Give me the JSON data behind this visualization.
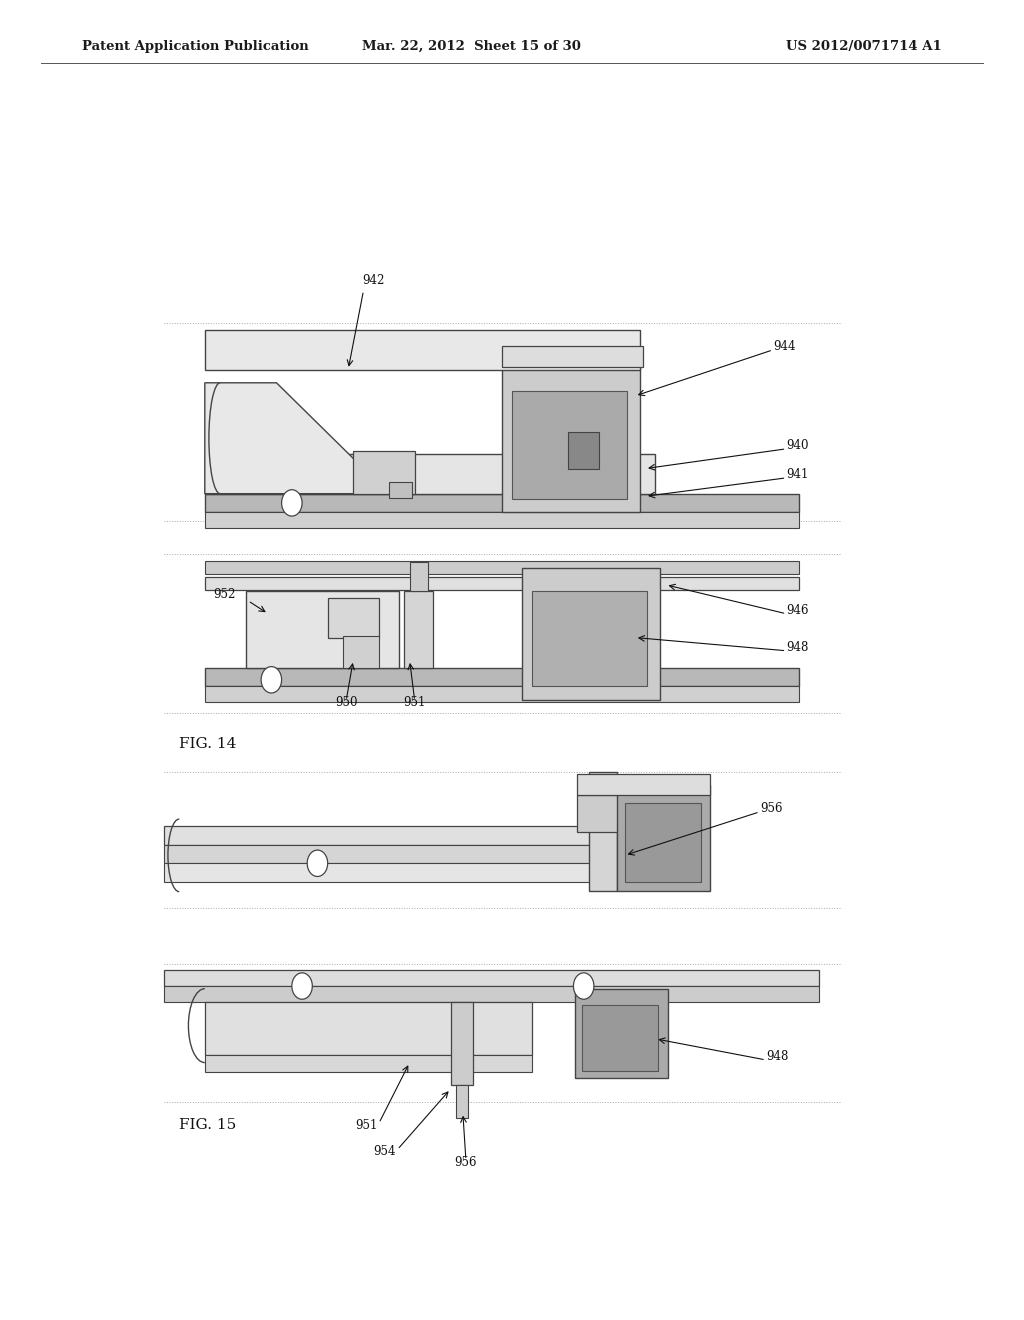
{
  "bg_color": "#ffffff",
  "header_left": "Patent Application Publication",
  "header_center": "Mar. 22, 2012  Sheet 15 of 30",
  "header_right": "US 2012/0071714 A1",
  "fig14_label": "FIG. 14",
  "fig15_label": "FIG. 15"
}
